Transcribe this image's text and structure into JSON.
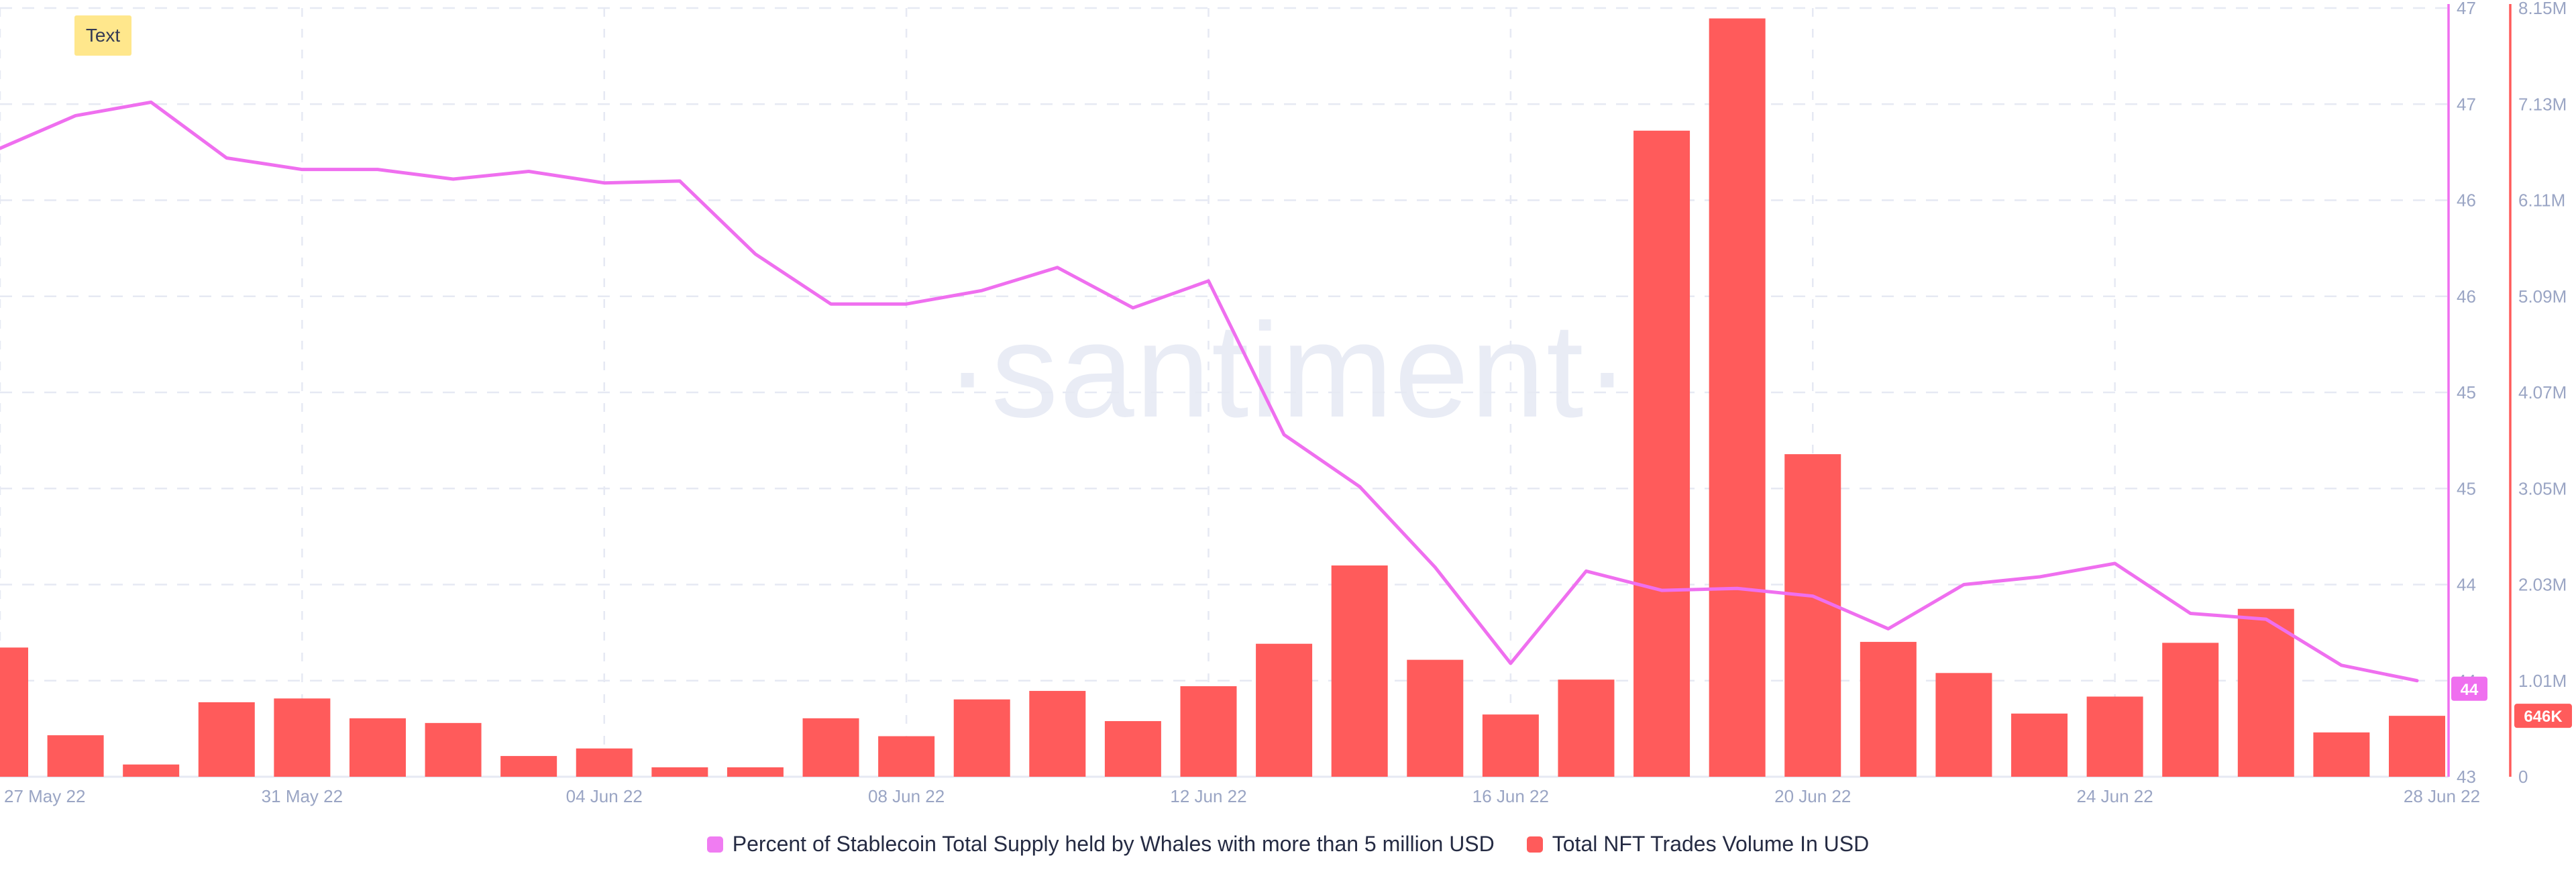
{
  "note": {
    "text": "Text"
  },
  "watermark": {
    "text": "·santiment·"
  },
  "legend": {
    "items": [
      {
        "label": "Percent of Stablecoin Total Supply held by Whales with more than 5 million USD",
        "color": "#F07CF2"
      },
      {
        "label": "Total NFT Trades Volume In USD",
        "color": "#FF5B5B"
      }
    ]
  },
  "chart_data": {
    "type": "mixed",
    "title": "",
    "grid": true,
    "legend_position": "bottom-center",
    "x": [
      "27 May 22",
      "28 May 22",
      "29 May 22",
      "30 May 22",
      "31 May 22",
      "01 Jun 22",
      "02 Jun 22",
      "03 Jun 22",
      "04 Jun 22",
      "05 Jun 22",
      "06 Jun 22",
      "07 Jun 22",
      "08 Jun 22",
      "09 Jun 22",
      "10 Jun 22",
      "11 Jun 22",
      "12 Jun 22",
      "13 Jun 22",
      "14 Jun 22",
      "15 Jun 22",
      "16 Jun 22",
      "17 Jun 22",
      "18 Jun 22",
      "19 Jun 22",
      "20 Jun 22",
      "21 Jun 22",
      "22 Jun 22",
      "23 Jun 22",
      "24 Jun 22",
      "25 Jun 22",
      "26 Jun 22",
      "27 Jun 22",
      "28 Jun 22"
    ],
    "x_ticks": [
      {
        "i": 0,
        "label": "27 May 22"
      },
      {
        "i": 4,
        "label": "31 May 22"
      },
      {
        "i": 8,
        "label": "04 Jun 22"
      },
      {
        "i": 12,
        "label": "08 Jun 22"
      },
      {
        "i": 16,
        "label": "12 Jun 22"
      },
      {
        "i": 20,
        "label": "16 Jun 22"
      },
      {
        "i": 24,
        "label": "20 Jun 22"
      },
      {
        "i": 28,
        "label": "24 Jun 22"
      },
      {
        "i": 32,
        "label": "28 Jun 22"
      }
    ],
    "series": [
      {
        "name": "Percent of Stablecoin Total Supply held by Whales with more than 5 million USD",
        "type": "line",
        "axis": "left",
        "color": "#EF6FEF",
        "values": [
          46.27,
          46.44,
          46.51,
          46.22,
          46.16,
          46.16,
          46.11,
          46.15,
          46.09,
          46.1,
          45.72,
          45.46,
          45.46,
          45.53,
          45.65,
          45.44,
          45.58,
          44.78,
          44.51,
          44.09,
          43.59,
          44.07,
          43.97,
          43.98,
          43.94,
          43.77,
          44.0,
          44.04,
          44.11,
          43.85,
          43.82,
          43.58,
          43.5
        ],
        "current_value_label": "44"
      },
      {
        "name": "Total NFT Trades Volume In USD",
        "type": "bar",
        "axis": "right",
        "color": "#FF5B5B",
        "values": [
          1370000,
          440000,
          130000,
          790000,
          830000,
          620000,
          570000,
          220000,
          300000,
          100000,
          100000,
          620000,
          430000,
          820000,
          910000,
          590000,
          960000,
          1410000,
          2240000,
          1240000,
          660000,
          1030000,
          6850000,
          8040000,
          3420000,
          1430000,
          1100000,
          670000,
          850000,
          1420000,
          1780000,
          470000,
          646000
        ],
        "current_value_label": "646K"
      }
    ],
    "left_axis": {
      "min": 43,
      "max": 47,
      "tick_step": 0.5,
      "tick_labels": [
        "47",
        "47",
        "46",
        "46",
        "45",
        "45",
        "44",
        "44",
        "43"
      ],
      "color": "#EF6FEF",
      "current_value_label": "44"
    },
    "right_axis": {
      "min": 0,
      "max": 8150000,
      "tick_labels": [
        "8.15M",
        "7.13M",
        "6.11M",
        "5.09M",
        "4.07M",
        "3.05M",
        "2.03M",
        "1.01M",
        "0"
      ],
      "color": "#FF5B5B",
      "current_value_label": "646K"
    }
  }
}
